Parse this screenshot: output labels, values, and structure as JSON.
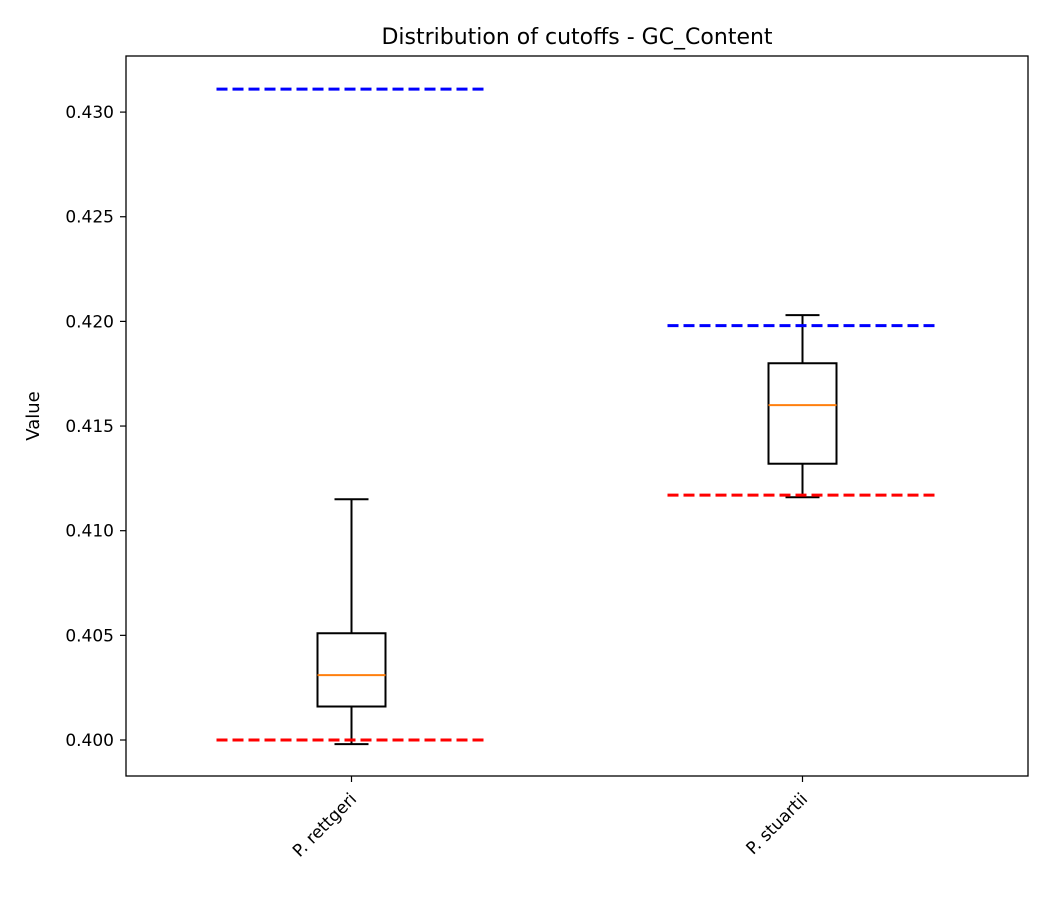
{
  "chart_data": {
    "type": "boxplot",
    "title": "Distribution of cutoffs - GC_Content",
    "xlabel": "",
    "ylabel": "Value",
    "ylim": [
      0.39828,
      0.43268
    ],
    "yticks": [
      0.4,
      0.405,
      0.41,
      0.415,
      0.42,
      0.425,
      0.43
    ],
    "ytick_labels": [
      "0.400",
      "0.405",
      "0.410",
      "0.415",
      "0.420",
      "0.425",
      "0.430"
    ],
    "categories": [
      "P. rettgeri",
      "P. stuartii"
    ],
    "grid": false,
    "boxes": [
      {
        "category": "P. rettgeri",
        "whisker_low": 0.3998,
        "q1": 0.4016,
        "median": 0.4031,
        "q3": 0.4051,
        "whisker_high": 0.4115,
        "upper_cutoff": 0.4311,
        "lower_cutoff": 0.4
      },
      {
        "category": "P. stuartii",
        "whisker_low": 0.4116,
        "q1": 0.4132,
        "median": 0.416,
        "q3": 0.418,
        "whisker_high": 0.4203,
        "upper_cutoff": 0.4198,
        "lower_cutoff": 0.4117
      }
    ],
    "colors": {
      "box": "#000000",
      "median": "#ff7f0e",
      "upper_cutoff": "#0000ff",
      "lower_cutoff": "#ff0000"
    }
  }
}
